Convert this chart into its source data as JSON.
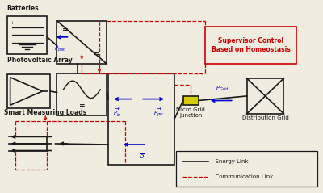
{
  "bg_color": "#f0ece0",
  "line_color": "#1a1a1a",
  "red_dash_color": "#cc0000",
  "blue_color": "#0000cc",
  "junction_color": "#d4cc00",
  "figsize": [
    4.0,
    2.39
  ],
  "dpi": 100,
  "labels": {
    "batteries": "Batteries",
    "pv_array": "Photovoltaic Array",
    "smart_loads": "Smart Measuring Loads",
    "micro_grid": "Micro Grid\nJunction",
    "dist_grid": "Distribution Grid",
    "supervisor": "Supervisor Control\nBased on Homeostasis",
    "energy_link": "  Energy Link",
    "comm_link": "  Communication Link",
    "p_bat": "$P_{bat}$",
    "p_pv": "$\\overrightarrow{P_{PV}}$",
    "p_b": "$\\overrightarrow{P_b}$",
    "p_grid": "$P_{Grid}$",
    "d_label": "$\\overline{D}$"
  }
}
